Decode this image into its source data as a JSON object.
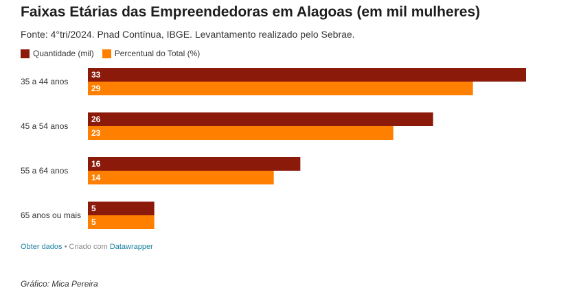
{
  "title": "Faixas Etárias das Empreendedoras em Alagoas (em mil mulheres)",
  "subtitle": "Fonte: 4°tri/2024. Pnad Contínua, IBGE. Levantamento realizado pelo Sebrae.",
  "colors": {
    "quantidade": "#8b1a0b",
    "percentual": "#ff7f00",
    "label": "#ffffff"
  },
  "chart_data": {
    "type": "bar",
    "orientation": "horizontal",
    "categories": [
      "35 a 44 anos",
      "45 a 54 anos",
      "55 a 64 anos",
      "65 anos ou mais"
    ],
    "series": [
      {
        "name": "Quantidade (mil)",
        "values": [
          33,
          26,
          16,
          5
        ]
      },
      {
        "name": "Percentual do Total (%)",
        "values": [
          29,
          23,
          14,
          5
        ]
      }
    ],
    "xlim": [
      0,
      33
    ],
    "grid": false,
    "legend_position": "top-left"
  },
  "footer": {
    "get_data": "Obter dados",
    "separator": " • Criado com ",
    "tool": "Datawrapper"
  },
  "credit": "Gráfico: Mica Pereira"
}
